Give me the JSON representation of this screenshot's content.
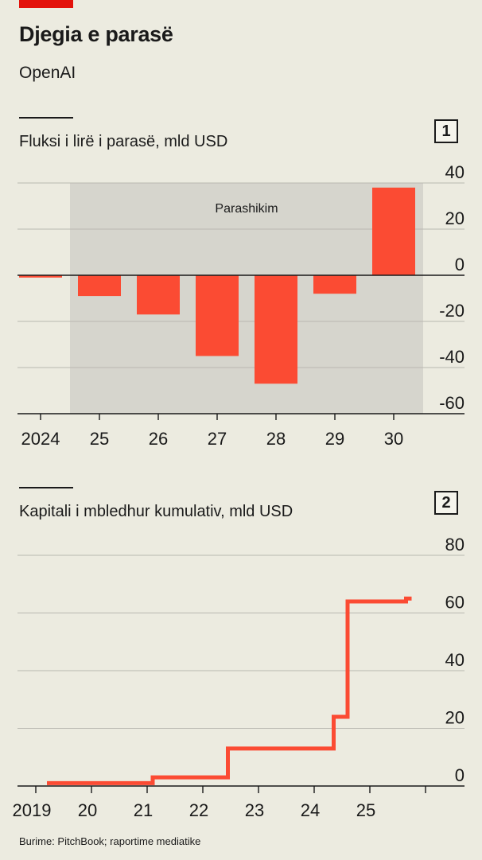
{
  "header": {
    "title": "Djegia e parasë",
    "subtitle": "OpenAI",
    "accent_color": "#e3120b"
  },
  "chart_data": [
    {
      "type": "bar",
      "number": "1",
      "title": "Fluksi i lirë i parasë, mld USD",
      "categories": [
        "2024",
        "25",
        "26",
        "27",
        "28",
        "29",
        "30"
      ],
      "values": [
        -1,
        -9,
        -17,
        -35,
        -47,
        -8,
        38
      ],
      "ylim": [
        -60,
        40
      ],
      "yticks": [
        40,
        20,
        0,
        -20,
        -40,
        -60
      ],
      "ytick_labels": [
        "40",
        "20",
        "0",
        "-20",
        "-40",
        "-60"
      ],
      "annotation": {
        "label": "Parashikim",
        "from_category": "25",
        "to_category": "30"
      },
      "bar_color": "#fb4b33",
      "shade_color": "#d6d5cd",
      "grid": true
    },
    {
      "type": "line",
      "number": "2",
      "title": "Kapitali i mbledhur kumulativ, mld USD",
      "x_ticks": [
        "2019",
        "20",
        "21",
        "22",
        "23",
        "24",
        "25"
      ],
      "xlim": [
        2018.7,
        2026.0
      ],
      "ylim": [
        0,
        80
      ],
      "yticks": [
        80,
        60,
        40,
        20,
        0
      ],
      "ytick_labels": [
        "80",
        "60",
        "40",
        "20",
        "0"
      ],
      "series": [
        {
          "step": true,
          "color": "#fb4b33",
          "x": [
            2019.2,
            2021.1,
            2021.1,
            2022.45,
            2022.45,
            2024.35,
            2024.35,
            2024.6,
            2024.6,
            2025.65,
            2025.65,
            2025.75
          ],
          "y": [
            1,
            1,
            3,
            3,
            13,
            13,
            24,
            24,
            64,
            64,
            65,
            65
          ]
        }
      ],
      "grid": true
    }
  ],
  "footer": {
    "source": "Burime: PitchBook; raportime mediatike"
  }
}
